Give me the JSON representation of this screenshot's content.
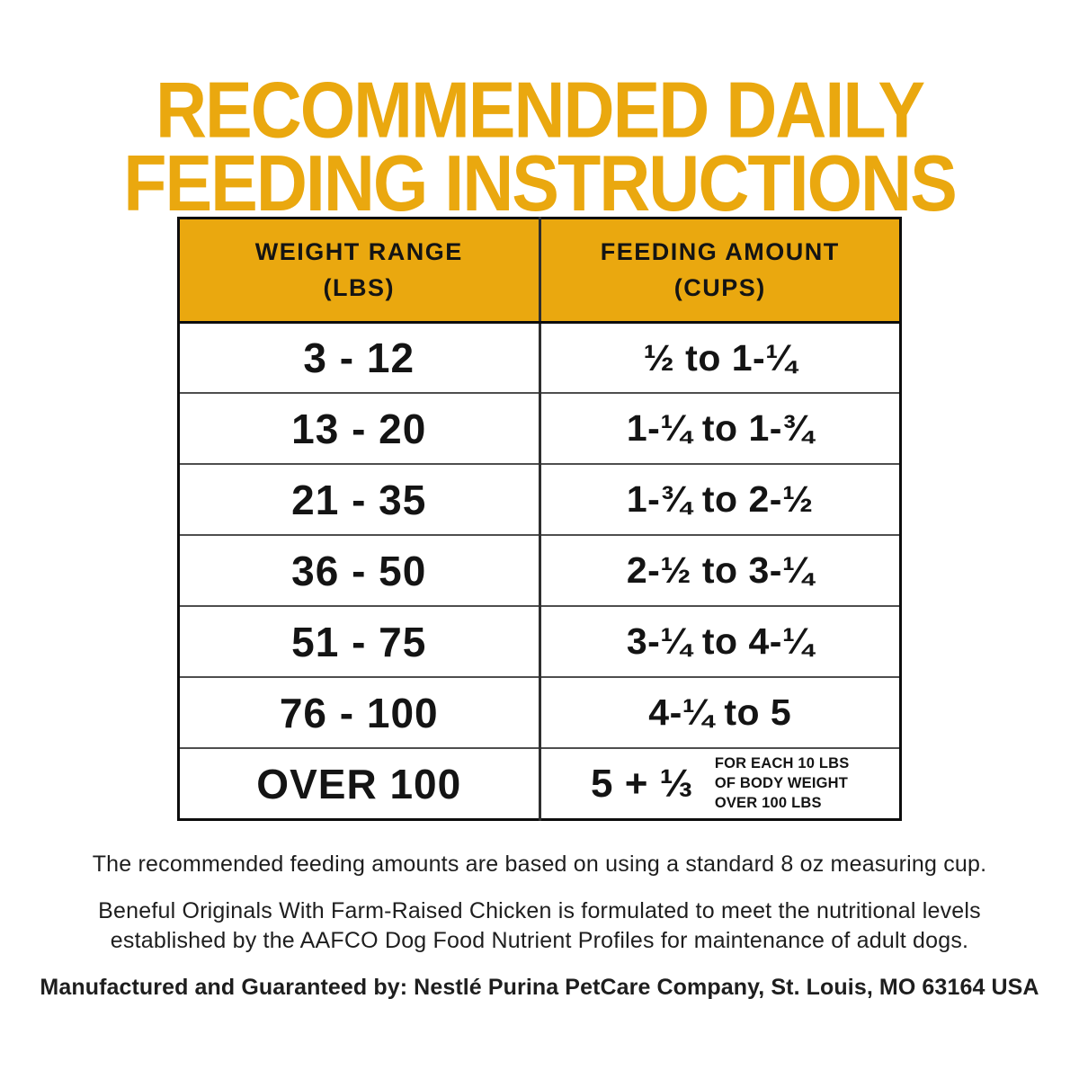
{
  "colors": {
    "gold": "#EAA80F",
    "ink": "#151515",
    "grid_line": "#4e4e4e"
  },
  "title": {
    "line1": "RECOMMENDED DAILY",
    "line2": "FEEDING INSTRUCTIONS"
  },
  "table": {
    "headers": [
      {
        "line1": "WEIGHT RANGE",
        "line2": "(LBS)"
      },
      {
        "line1": "FEEDING AMOUNT",
        "line2": "(CUPS)"
      }
    ],
    "rows": [
      {
        "weight": "3 - 12",
        "amount": "½ to 1-¼"
      },
      {
        "weight": "13 - 20",
        "amount": "1-¼ to 1-¾"
      },
      {
        "weight": "21 - 35",
        "amount": "1-¾ to 2-½"
      },
      {
        "weight": "36 - 50",
        "amount": "2-½ to 3-¼"
      },
      {
        "weight": "51 - 75",
        "amount": "3-¼ to 4-¼"
      },
      {
        "weight": "76 - 100",
        "amount": "4-¼ to 5"
      },
      {
        "weight": "OVER 100",
        "amount": "5 + ⅓",
        "note_lines": [
          "FOR EACH 10 LBS",
          "OF BODY WEIGHT",
          "OVER 100 LBS"
        ]
      }
    ]
  },
  "footer": {
    "note1": "The recommended feeding amounts are based on using a standard 8 oz measuring cup.",
    "note2": "Beneful Originals With Farm-Raised Chicken is formulated to meet the nutritional levels established by the AAFCO Dog Food Nutrient Profiles for maintenance of adult dogs.",
    "note3": "Manufactured and Guaranteed by: Nestlé Purina PetCare Company, St. Louis, MO 63164 USA"
  }
}
